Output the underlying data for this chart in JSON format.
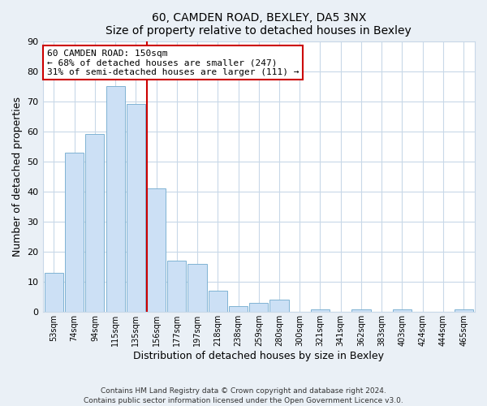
{
  "title": "60, CAMDEN ROAD, BEXLEY, DA5 3NX",
  "subtitle": "Size of property relative to detached houses in Bexley",
  "xlabel": "Distribution of detached houses by size in Bexley",
  "ylabel": "Number of detached properties",
  "bar_labels": [
    "53sqm",
    "74sqm",
    "94sqm",
    "115sqm",
    "135sqm",
    "156sqm",
    "177sqm",
    "197sqm",
    "218sqm",
    "238sqm",
    "259sqm",
    "280sqm",
    "300sqm",
    "321sqm",
    "341sqm",
    "362sqm",
    "383sqm",
    "403sqm",
    "424sqm",
    "444sqm",
    "465sqm"
  ],
  "bar_values": [
    13,
    53,
    59,
    75,
    69,
    41,
    17,
    16,
    7,
    2,
    3,
    4,
    0,
    1,
    0,
    1,
    0,
    1,
    0,
    0,
    1
  ],
  "bar_color": "#cce0f5",
  "bar_edge_color": "#7fb3d3",
  "marker_line_color": "#cc0000",
  "annotation_line1": "60 CAMDEN ROAD: 150sqm",
  "annotation_line2": "← 68% of detached houses are smaller (247)",
  "annotation_line3": "31% of semi-detached houses are larger (111) →",
  "annotation_box_color": "#ffffff",
  "annotation_box_edge_color": "#cc0000",
  "ylim": [
    0,
    90
  ],
  "yticks": [
    0,
    10,
    20,
    30,
    40,
    50,
    60,
    70,
    80,
    90
  ],
  "footer_line1": "Contains HM Land Registry data © Crown copyright and database right 2024.",
  "footer_line2": "Contains public sector information licensed under the Open Government Licence v3.0.",
  "bg_color": "#eaf0f6",
  "plot_bg_color": "#ffffff",
  "grid_color": "#c8d8e8"
}
